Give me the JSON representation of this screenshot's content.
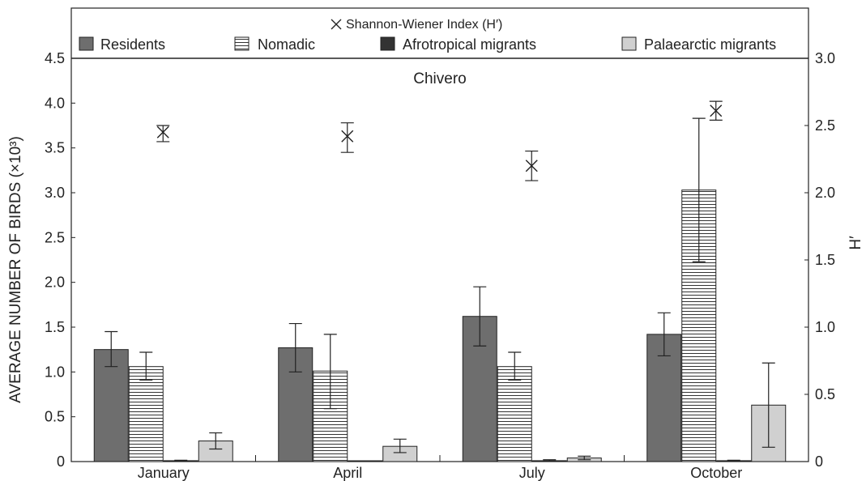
{
  "chart_data": {
    "type": "bar",
    "subtitle": "Chivero",
    "categories": [
      "January",
      "April",
      "July",
      "October"
    ],
    "ylabel": "AVERAGE NUMBER OF BIRDS (×10³)",
    "y2label": "H′",
    "ylim": [
      0,
      4.5
    ],
    "y2lim": [
      0,
      3.0
    ],
    "yticks": [
      "0",
      "0.5",
      "1.0",
      "1.5",
      "2.0",
      "2.5",
      "3.0",
      "3.5",
      "4.0",
      "4.5"
    ],
    "y2ticks": [
      "0",
      "0.5",
      "1.0",
      "1.5",
      "2.0",
      "2.5",
      "3.0"
    ],
    "legend_position": "top",
    "series": [
      {
        "name": "Residents",
        "color": "#6e6e6e",
        "pattern": "solid",
        "values": [
          1.25,
          1.27,
          1.62,
          1.42
        ],
        "err_low": [
          1.06,
          1.0,
          1.29,
          1.18
        ],
        "err_high": [
          1.45,
          1.54,
          1.95,
          1.66
        ]
      },
      {
        "name": "Nomadic",
        "color": "#ffffff",
        "pattern": "horizontal-lines",
        "values": [
          1.06,
          1.01,
          1.06,
          3.03
        ],
        "err_low": [
          0.91,
          0.59,
          0.91,
          2.23
        ],
        "err_high": [
          1.22,
          1.42,
          1.22,
          3.83
        ]
      },
      {
        "name": "Afrotropical migrants",
        "color": "#333333",
        "pattern": "solid",
        "values": [
          0.01,
          0.0,
          0.01,
          0.01
        ],
        "err_low": [
          0.005,
          0.0,
          0.005,
          0.005
        ],
        "err_high": [
          0.015,
          0.0,
          0.02,
          0.015
        ]
      },
      {
        "name": "Palaearctic migrants",
        "color": "#d0d0d0",
        "pattern": "solid",
        "values": [
          0.23,
          0.17,
          0.04,
          0.63
        ],
        "err_low": [
          0.14,
          0.1,
          0.02,
          0.16
        ],
        "err_high": [
          0.32,
          0.25,
          0.06,
          1.1
        ]
      }
    ],
    "index_series": {
      "name": "Shannon-Wiener Index (H′)",
      "axis": "right",
      "marker": "x",
      "values": [
        2.45,
        2.42,
        2.2,
        2.61
      ],
      "err_low": [
        2.38,
        2.3,
        2.09,
        2.54
      ],
      "err_high": [
        2.5,
        2.52,
        2.31,
        2.68
      ]
    }
  }
}
